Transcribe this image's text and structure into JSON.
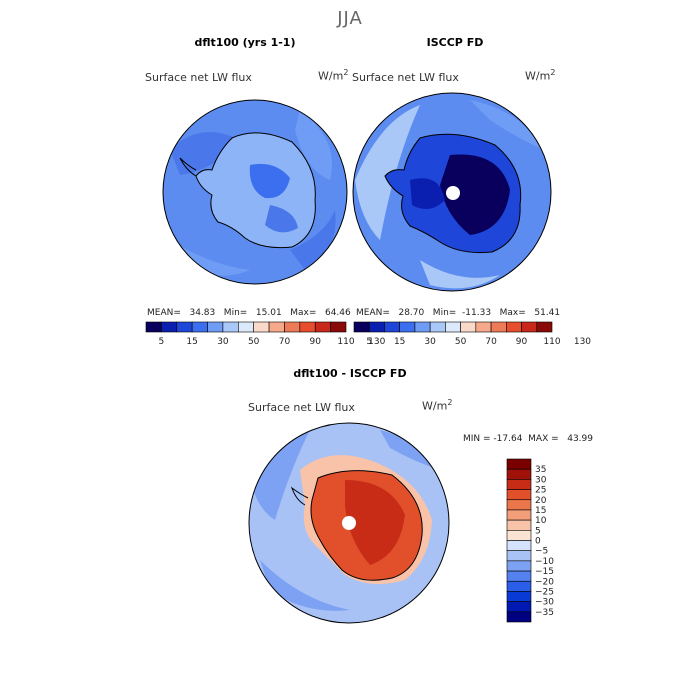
{
  "header": {
    "season": "JJA"
  },
  "colors": {
    "abs_scale": [
      "#08005c",
      "#0a1fb0",
      "#1e46d8",
      "#3b6ff0",
      "#6f9cf5",
      "#a9c8f7",
      "#dce9fb",
      "#fbd9c8",
      "#f6a98a",
      "#ee7b58",
      "#e64e2e",
      "#c8281a",
      "#8a0a0a"
    ],
    "diff_scale": [
      "#000080",
      "#0019b3",
      "#0a3ad6",
      "#2a5de8",
      "#5580f0",
      "#7ea2f3",
      "#a8c2f6",
      "#d4e2fb",
      "#fbe3d4",
      "#f8c3a8",
      "#f29e78",
      "#ec764b",
      "#e2502b",
      "#c92c16",
      "#a01109",
      "#7a0000"
    ],
    "background": "#ffffff"
  },
  "panels": {
    "left": {
      "title": "dflt100 (yrs 1-1)",
      "field": "Surface net LW flux",
      "unit": "W/m",
      "unit_exp": "2",
      "stats": "MEAN=   34.83   Min=   15.01   Max=   64.46"
    },
    "right": {
      "title": "ISCCP FD",
      "field": "Surface net LW flux",
      "unit": "W/m",
      "unit_exp": "2",
      "stats": "MEAN=   28.70   Min=  -11.33   Max=   51.41"
    },
    "diff": {
      "title": "dflt100 - ISCCP FD",
      "field": "Surface net LW flux",
      "unit": "W/m",
      "unit_exp": "2",
      "stats": "MIN = -17.64  MAX =   43.99"
    }
  },
  "chart_data": [
    {
      "type": "heatmap",
      "title": "dflt100 (yrs 1-1)",
      "variable": "Surface net LW flux",
      "units": "W/m2",
      "projection": "south polar stereographic",
      "mean": 34.83,
      "min": 15.01,
      "max": 64.46,
      "colorbar_levels": [
        5,
        15,
        30,
        50,
        70,
        90,
        110,
        130
      ],
      "colorbar_tick_labels": [
        "5",
        "15",
        "30",
        "50",
        "70",
        "90",
        "110",
        "130"
      ]
    },
    {
      "type": "heatmap",
      "title": "ISCCP FD",
      "variable": "Surface net LW flux",
      "units": "W/m2",
      "projection": "south polar stereographic",
      "mean": 28.7,
      "min": -11.33,
      "max": 51.41,
      "colorbar_levels": [
        5,
        15,
        30,
        50,
        70,
        90,
        110,
        130
      ],
      "colorbar_tick_labels": [
        "5",
        "15",
        "30",
        "50",
        "70",
        "90",
        "110",
        "130"
      ]
    },
    {
      "type": "heatmap",
      "title": "dflt100 - ISCCP FD",
      "variable": "Surface net LW flux",
      "units": "W/m2",
      "projection": "south polar stereographic",
      "min": -17.64,
      "max": 43.99,
      "colorbar_levels": [
        35,
        30,
        25,
        20,
        15,
        10,
        5,
        0,
        -5,
        -10,
        -15,
        -20,
        -25,
        -30,
        -35
      ],
      "colorbar_tick_labels": [
        "35",
        "30",
        "25",
        "20",
        "15",
        "10",
        "5",
        "0",
        "−5",
        "−10",
        "−15",
        "−20",
        "−25",
        "−30",
        "−35"
      ]
    }
  ]
}
